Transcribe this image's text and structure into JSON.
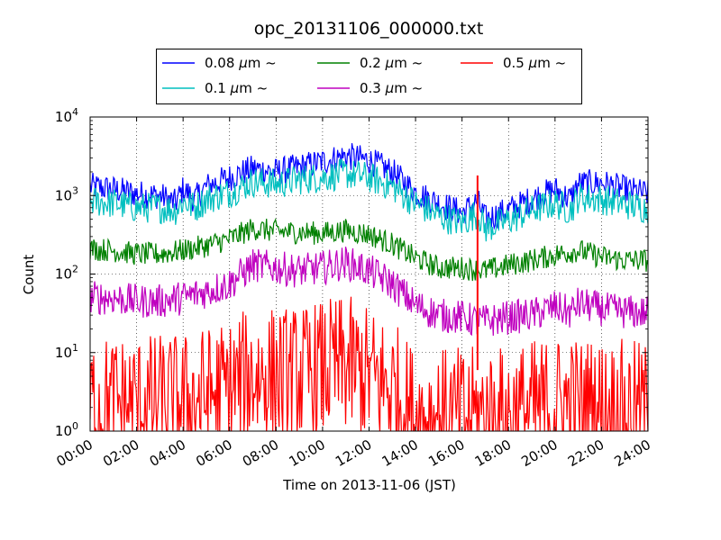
{
  "chart_data": {
    "type": "line",
    "title": "opc_20131106_000000.txt",
    "xlabel": "Time on 2013-11-06 (JST)",
    "ylabel": "Count",
    "yscale": "log",
    "ylim": [
      1,
      10000
    ],
    "xlim": [
      "00:00",
      "24:00"
    ],
    "x_ticks": [
      "00:00",
      "02:00",
      "04:00",
      "06:00",
      "08:00",
      "10:00",
      "12:00",
      "14:00",
      "16:00",
      "18:00",
      "20:00",
      "22:00",
      "24:00"
    ],
    "y_ticks": [
      {
        "base": "10",
        "exp": "0"
      },
      {
        "base": "10",
        "exp": "1"
      },
      {
        "base": "10",
        "exp": "2"
      },
      {
        "base": "10",
        "exp": "3"
      },
      {
        "base": "10",
        "exp": "4"
      }
    ],
    "grid": true,
    "legend_position": "top",
    "series": [
      {
        "name": "0.08 μm ~",
        "label_parts": {
          "size": "0.08",
          "mu": "μ",
          "unit": "m",
          "tilde": "~"
        },
        "color": "#0000ff",
        "noise": 0.18,
        "points": [
          [
            "00:00",
            1300
          ],
          [
            "01:00",
            1200
          ],
          [
            "02:00",
            1050
          ],
          [
            "03:00",
            1000
          ],
          [
            "03:40",
            800
          ],
          [
            "04:00",
            1200
          ],
          [
            "04:30",
            900
          ],
          [
            "05:00",
            1300
          ],
          [
            "06:00",
            1700
          ],
          [
            "07:00",
            2200
          ],
          [
            "08:00",
            2000
          ],
          [
            "09:00",
            2300
          ],
          [
            "10:00",
            2700
          ],
          [
            "11:00",
            3200
          ],
          [
            "12:00",
            2800
          ],
          [
            "13:00",
            2000
          ],
          [
            "14:00",
            1100
          ],
          [
            "15:00",
            800
          ],
          [
            "16:00",
            600
          ],
          [
            "16:40",
            850
          ],
          [
            "17:00",
            500
          ],
          [
            "18:00",
            650
          ],
          [
            "19:00",
            900
          ],
          [
            "20:00",
            1200
          ],
          [
            "20:40",
            900
          ],
          [
            "21:00",
            1400
          ],
          [
            "22:00",
            1450
          ],
          [
            "23:00",
            1200
          ],
          [
            "24:00",
            1050
          ]
        ]
      },
      {
        "name": "0.1 μm ~",
        "label_parts": {
          "size": "0.1",
          "mu": "μ",
          "unit": "m",
          "tilde": "~"
        },
        "color": "#00bfbf",
        "noise": 0.2,
        "points": [
          [
            "00:00",
            850
          ],
          [
            "01:00",
            800
          ],
          [
            "02:00",
            700
          ],
          [
            "03:00",
            700
          ],
          [
            "03:40",
            650
          ],
          [
            "04:00",
            850
          ],
          [
            "04:30",
            700
          ],
          [
            "05:00",
            900
          ],
          [
            "06:00",
            1100
          ],
          [
            "07:00",
            1500
          ],
          [
            "08:00",
            1400
          ],
          [
            "09:00",
            1600
          ],
          [
            "10:00",
            1700
          ],
          [
            "11:00",
            1900
          ],
          [
            "12:00",
            1700
          ],
          [
            "13:00",
            1300
          ],
          [
            "14:00",
            800
          ],
          [
            "15:00",
            550
          ],
          [
            "16:00",
            450
          ],
          [
            "16:40",
            600
          ],
          [
            "17:00",
            380
          ],
          [
            "18:00",
            480
          ],
          [
            "19:00",
            650
          ],
          [
            "20:00",
            800
          ],
          [
            "20:40",
            650
          ],
          [
            "21:00",
            950
          ],
          [
            "22:00",
            900
          ],
          [
            "23:00",
            780
          ],
          [
            "24:00",
            680
          ]
        ]
      },
      {
        "name": "0.2 μm ~",
        "label_parts": {
          "size": "0.2",
          "mu": "μ",
          "unit": "m",
          "tilde": "~"
        },
        "color": "#008000",
        "noise": 0.15,
        "points": [
          [
            "00:00",
            210
          ],
          [
            "01:00",
            200
          ],
          [
            "02:00",
            180
          ],
          [
            "03:00",
            180
          ],
          [
            "04:00",
            200
          ],
          [
            "05:00",
            230
          ],
          [
            "06:00",
            280
          ],
          [
            "07:00",
            380
          ],
          [
            "08:00",
            350
          ],
          [
            "09:00",
            340
          ],
          [
            "10:00",
            330
          ],
          [
            "11:00",
            360
          ],
          [
            "12:00",
            320
          ],
          [
            "13:00",
            240
          ],
          [
            "14:00",
            160
          ],
          [
            "15:00",
            120
          ],
          [
            "16:00",
            120
          ],
          [
            "17:00",
            110
          ],
          [
            "18:00",
            130
          ],
          [
            "19:00",
            150
          ],
          [
            "20:00",
            175
          ],
          [
            "21:00",
            200
          ],
          [
            "22:00",
            165
          ],
          [
            "23:00",
            150
          ],
          [
            "24:00",
            150
          ]
        ]
      },
      {
        "name": "0.3 μm ~",
        "label_parts": {
          "size": "0.3",
          "mu": "μ",
          "unit": "m",
          "tilde": "~"
        },
        "color": "#bf00bf",
        "noise": 0.22,
        "points": [
          [
            "00:00",
            50
          ],
          [
            "01:00",
            50
          ],
          [
            "02:00",
            45
          ],
          [
            "03:00",
            45
          ],
          [
            "04:00",
            50
          ],
          [
            "05:00",
            60
          ],
          [
            "06:00",
            75
          ],
          [
            "07:00",
            130
          ],
          [
            "08:00",
            120
          ],
          [
            "09:00",
            110
          ],
          [
            "10:00",
            120
          ],
          [
            "11:00",
            140
          ],
          [
            "12:00",
            110
          ],
          [
            "13:00",
            75
          ],
          [
            "14:00",
            40
          ],
          [
            "15:00",
            30
          ],
          [
            "16:00",
            28
          ],
          [
            "16:40",
            25
          ],
          [
            "17:00",
            25
          ],
          [
            "18:00",
            28
          ],
          [
            "19:00",
            30
          ],
          [
            "20:00",
            38
          ],
          [
            "20:40",
            32
          ],
          [
            "21:00",
            42
          ],
          [
            "22:00",
            36
          ],
          [
            "23:00",
            33
          ],
          [
            "24:00",
            32
          ]
        ]
      },
      {
        "name": "0.5 μm ~",
        "label_parts": {
          "size": "0.5",
          "mu": "μ",
          "unit": "m",
          "tilde": "~"
        },
        "color": "#ff0000",
        "noise": 0.9,
        "points": [
          [
            "00:00",
            2.2
          ],
          [
            "02:00",
            2.2
          ],
          [
            "04:00",
            2.3
          ],
          [
            "05:00",
            2.8
          ],
          [
            "06:00",
            3.5
          ],
          [
            "07:00",
            5
          ],
          [
            "08:00",
            5
          ],
          [
            "09:00",
            5
          ],
          [
            "10:00",
            6
          ],
          [
            "11:00",
            7
          ],
          [
            "12:00",
            5
          ],
          [
            "13:00",
            3.5
          ],
          [
            "13:40",
            2
          ],
          [
            "14:00",
            1.5
          ],
          [
            "16:00",
            1.5
          ],
          [
            "18:00",
            1.6
          ],
          [
            "20:00",
            2.2
          ],
          [
            "22:00",
            2.0
          ],
          [
            "24:00",
            1.8
          ]
        ]
      }
    ],
    "annotations": [
      {
        "x": "16:40",
        "y_low": 6,
        "y_high": 1800,
        "color": "#ff0000",
        "note": "spike"
      }
    ]
  }
}
